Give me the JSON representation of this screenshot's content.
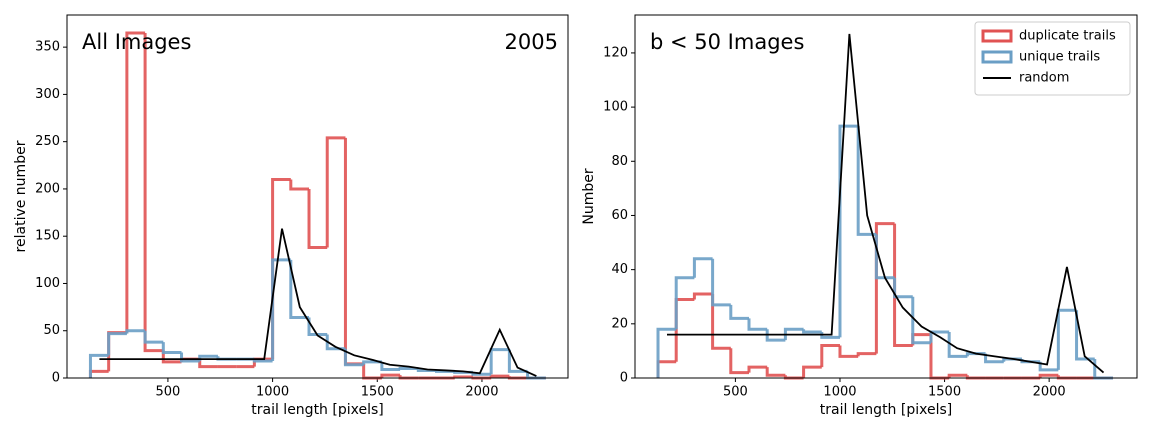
{
  "chart_data": [
    {
      "type": "histogram",
      "title": "All Images",
      "annotation": "2005",
      "xlabel": "trail length [pixels]",
      "ylabel": "relative number",
      "bins": [
        130,
        217,
        304,
        391,
        478,
        565,
        652,
        739,
        826,
        913,
        1000,
        1087,
        1174,
        1261,
        1348,
        1435,
        1522,
        1609,
        1696,
        1783,
        1870,
        1957,
        2044,
        2131,
        2218,
        2305
      ],
      "series": [
        {
          "color": "#e05252",
          "values": [
            7,
            48,
            365,
            29,
            17,
            20,
            12,
            12,
            12,
            20,
            210,
            200,
            138,
            254,
            15,
            0,
            3,
            0,
            0,
            0,
            1,
            0,
            2,
            0,
            0
          ]
        },
        {
          "color": "#6a9ec5",
          "values": [
            24,
            47,
            50,
            38,
            27,
            18,
            23,
            20,
            20,
            18,
            125,
            64,
            46,
            31,
            14,
            17,
            9,
            10,
            8,
            7,
            6,
            4,
            30,
            7,
            0
          ]
        }
      ],
      "line": {
        "color": "#000000",
        "x": [
          173,
          960,
          1045,
          1130,
          1215,
          1300,
          1390,
          1480,
          1560,
          1650,
          1740,
          1830,
          1910,
          1990,
          2085,
          2170,
          2260
        ],
        "values": [
          20,
          20,
          158,
          75,
          45,
          33,
          24,
          19,
          14,
          12,
          9,
          8,
          7,
          5,
          51,
          11,
          2
        ]
      },
      "xlim": [
        18,
        2411
      ],
      "ylim": [
        0,
        384
      ],
      "xticks": [
        500,
        1000,
        1500,
        2000
      ],
      "yticks": [
        0,
        50,
        100,
        150,
        200,
        250,
        300,
        350
      ]
    },
    {
      "type": "histogram",
      "title": "b < 50 Images",
      "xlabel": "trail length [pixels]",
      "ylabel": "Number",
      "bins": [
        130,
        217,
        304,
        391,
        478,
        565,
        652,
        739,
        826,
        913,
        1000,
        1087,
        1174,
        1261,
        1348,
        1435,
        1522,
        1609,
        1696,
        1783,
        1870,
        1957,
        2044,
        2131,
        2218,
        2305
      ],
      "series": [
        {
          "name": "duplicate trails",
          "color": "#e05252",
          "values": [
            6,
            29,
            31,
            11,
            2,
            4,
            1,
            0,
            4,
            12,
            8,
            9,
            57,
            12,
            16,
            0,
            1,
            0,
            0,
            0,
            0,
            1,
            0,
            0,
            0
          ]
        },
        {
          "name": "unique trails",
          "color": "#6a9ec5",
          "values": [
            18,
            37,
            44,
            27,
            22,
            18,
            14,
            18,
            17,
            15,
            93,
            53,
            37,
            30,
            13,
            17,
            8,
            9,
            6,
            7,
            6,
            3,
            25,
            7,
            0
          ]
        }
      ],
      "line": {
        "name": "random",
        "color": "#000000",
        "x": [
          173,
          960,
          1045,
          1130,
          1215,
          1300,
          1390,
          1480,
          1560,
          1650,
          1740,
          1830,
          1910,
          1990,
          2085,
          2170,
          2260
        ],
        "values": [
          16,
          16,
          127,
          60,
          37,
          26,
          19,
          15,
          11,
          9,
          8,
          7,
          6,
          5,
          41,
          8,
          2
        ]
      },
      "xlim": [
        20,
        2420
      ],
      "ylim": [
        0,
        134
      ],
      "xticks": [
        500,
        1000,
        1500,
        2000
      ],
      "yticks": [
        0,
        20,
        40,
        60,
        80,
        100,
        120
      ],
      "legend": "upper right"
    }
  ]
}
